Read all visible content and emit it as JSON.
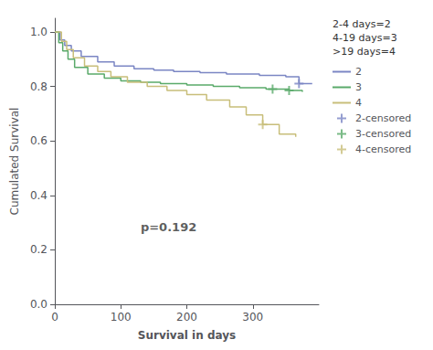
{
  "chart_data": {
    "type": "line",
    "xlabel": "Survival in days",
    "ylabel": "Cumulated Survival",
    "xlim": [
      0,
      400
    ],
    "xticks": [
      0,
      100,
      200,
      300
    ],
    "ylim": [
      0.0,
      1.05
    ],
    "yticks": [
      {
        "value": 0.0,
        "label": "0.0"
      },
      0.2,
      0.4,
      0.6,
      0.8,
      {
        "value": 1.0,
        "label": "1.0"
      }
    ],
    "grid": false,
    "legend": "right",
    "legend_title": "2-4 days=2\n4-19 days=3\n>19 days=4",
    "annotations": [
      {
        "text": "p=0.192",
        "x": 130,
        "y": 0.285
      }
    ],
    "series": [
      {
        "name": "2",
        "type": "step",
        "color": "#7b86c4",
        "x": [
          0,
          8,
          15,
          25,
          40,
          65,
          90,
          120,
          150,
          180,
          220,
          260,
          310,
          350,
          370,
          390
        ],
        "values": [
          1.0,
          0.97,
          0.95,
          0.93,
          0.91,
          0.89,
          0.875,
          0.865,
          0.86,
          0.855,
          0.85,
          0.845,
          0.84,
          0.835,
          0.81,
          0.81
        ]
      },
      {
        "name": "3",
        "type": "step",
        "color": "#5aaa6a",
        "x": [
          0,
          6,
          12,
          20,
          30,
          50,
          75,
          100,
          130,
          160,
          200,
          240,
          280,
          320,
          355,
          375
        ],
        "values": [
          1.0,
          0.96,
          0.93,
          0.9,
          0.87,
          0.845,
          0.83,
          0.82,
          0.815,
          0.81,
          0.805,
          0.8,
          0.795,
          0.79,
          0.785,
          0.78
        ]
      },
      {
        "name": "4",
        "type": "step",
        "color": "#c8be7a",
        "x": [
          0,
          4,
          10,
          18,
          28,
          45,
          65,
          85,
          110,
          140,
          170,
          200,
          230,
          265,
          290,
          315,
          340,
          365
        ],
        "values": [
          1.0,
          1.0,
          0.965,
          0.935,
          0.905,
          0.875,
          0.855,
          0.835,
          0.815,
          0.8,
          0.785,
          0.77,
          0.75,
          0.725,
          0.695,
          0.66,
          0.625,
          0.615
        ]
      },
      {
        "name": "2-censored",
        "type": "scatter",
        "marker": "+",
        "color": "#7b86c4",
        "x": [
          370
        ],
        "values": [
          0.81
        ]
      },
      {
        "name": "3-censored",
        "type": "scatter",
        "marker": "+",
        "color": "#5aaa6a",
        "x": [
          330,
          355
        ],
        "values": [
          0.79,
          0.785
        ]
      },
      {
        "name": "4-censored",
        "type": "scatter",
        "marker": "+",
        "color": "#c8be7a",
        "x": [
          315
        ],
        "values": [
          0.66
        ]
      }
    ]
  }
}
